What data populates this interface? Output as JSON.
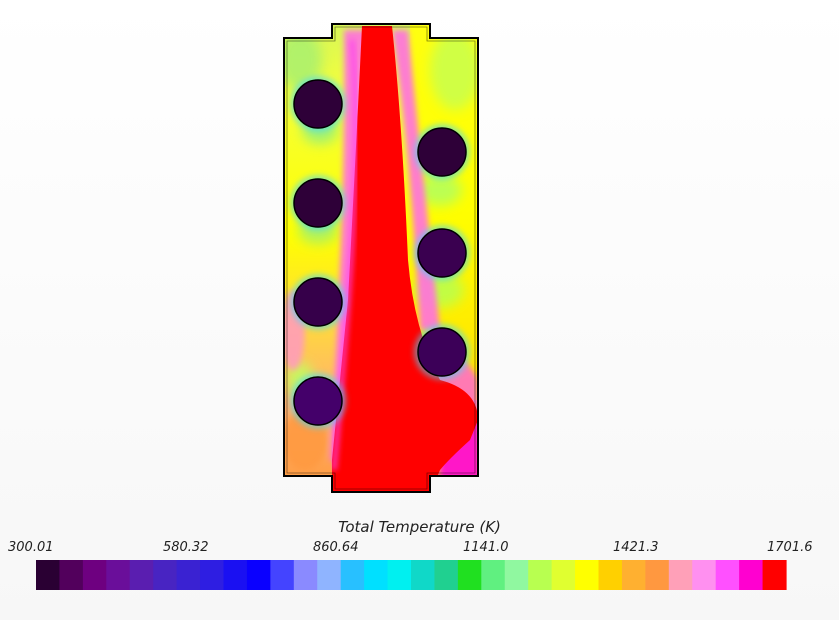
{
  "chart_data": {
    "type": "heatmap",
    "title": "",
    "colorbar": {
      "title": "Total Temperature (K)",
      "min": 300.01,
      "max": 1701.6,
      "tick_labels": [
        "300.01",
        "580.32",
        "860.64",
        "1141.0",
        "1421.3",
        "1701.6"
      ],
      "tick_values": [
        300.01,
        580.32,
        860.64,
        1141.0,
        1421.3,
        1701.6
      ],
      "colors": [
        "#2a0033",
        "#52005c",
        "#6e0080",
        "#6a0e9a",
        "#5a1eb0",
        "#4824c2",
        "#3a22d2",
        "#2e1ee2",
        "#1a10f2",
        "#0a00ff",
        "#4444ff",
        "#8a8aff",
        "#8fb4ff",
        "#28c0ff",
        "#00e0ff",
        "#00f0f0",
        "#10d8c8",
        "#20d090",
        "#20e020",
        "#60f080",
        "#90f8a0",
        "#b8ff50",
        "#e0ff30",
        "#ffff00",
        "#ffd000",
        "#ffb030",
        "#ff9840",
        "#ffa0b8",
        "#ff90f0",
        "#ff50ff",
        "#ff00d0",
        "#ff0000"
      ]
    },
    "field": {
      "hot_plume": "red core rising from bottom outlet through center of chamber",
      "tube_temperature_level": 300.01,
      "ambient_level": 1300
    },
    "colors": {
      "outline": "#000000",
      "tube_fill": "#2e0038",
      "hot": "#ff0000",
      "warm": "#ffff00"
    }
  }
}
